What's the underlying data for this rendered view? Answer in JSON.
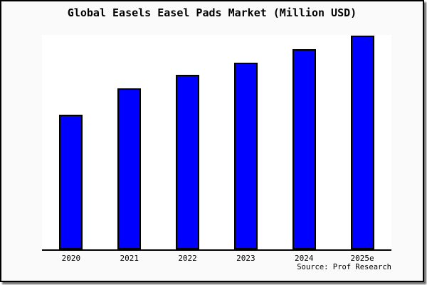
{
  "window": {
    "background": "#fafafa",
    "border_color": "#000000",
    "shadow_color": "#6e6e6e"
  },
  "title": "Global Easels Easel Pads Market (Million USD)",
  "source_credit": "Source: Prof Research",
  "chart_data": {
    "type": "bar",
    "title": "Global Easels Easel Pads Market (Million USD)",
    "categories": [
      "2020",
      "2021",
      "2022",
      "2023",
      "2024",
      "2025e"
    ],
    "values": [
      62.9,
      75.2,
      81.5,
      87.4,
      93.7,
      100
    ],
    "values_note": "y-axis has no tick labels or gridlines; values are relative bar heights normalized to 2025e = 100",
    "xlabel": "",
    "ylabel": "",
    "ylim": [
      0,
      100
    ],
    "grid": false,
    "legend": false,
    "bar_fill": "#0000ff",
    "bar_border": "#000000",
    "plot_background": "#ffffff",
    "axis_color": "#000000",
    "source": "Source: Prof Research"
  }
}
